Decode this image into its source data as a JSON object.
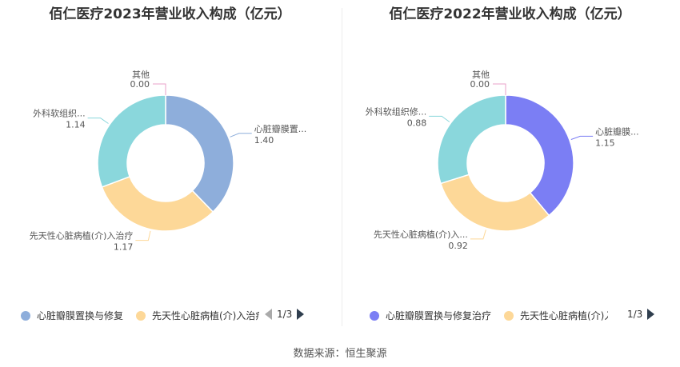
{
  "chart_data": [
    {
      "type": "pie",
      "title": "佰仁医疗2023年营业收入构成（亿元）",
      "unit": "亿元",
      "colors": [
        "#8eaedb",
        "#fdd898",
        "#8ad7dc",
        "#e8a0c8"
      ],
      "slices": [
        {
          "label": "心脏瓣膜置...",
          "value": 1.4,
          "display": "1.40"
        },
        {
          "label": "先天性心脏病植(介)入治疗",
          "value": 1.17,
          "display": "1.17"
        },
        {
          "label": "外科软组织...",
          "value": 1.14,
          "display": "1.14"
        },
        {
          "label": "其他",
          "value": 0.0,
          "display": "0.00"
        }
      ],
      "legend": {
        "items": [
          {
            "label": "心脏瓣膜置换与修复",
            "color": "#8eaedb"
          },
          {
            "label": "先天性心脏病植(介)入治疗",
            "color": "#fdd898"
          }
        ],
        "page": "1/3",
        "position": "bottom"
      }
    },
    {
      "type": "pie",
      "title": "佰仁医疗2022年营业收入构成（亿元）",
      "unit": "亿元",
      "colors": [
        "#7b7ef4",
        "#fdd898",
        "#8ad7dc",
        "#e8a0c8"
      ],
      "slices": [
        {
          "label": "心脏瓣膜...",
          "value": 1.15,
          "display": "1.15"
        },
        {
          "label": "先天性心脏病植(介)入...",
          "value": 0.92,
          "display": "0.92"
        },
        {
          "label": "外科软组织修...",
          "value": 0.88,
          "display": "0.88"
        },
        {
          "label": "其他",
          "value": 0.0,
          "display": "0.00"
        }
      ],
      "legend": {
        "items": [
          {
            "label": "心脏瓣膜置换与修复治疗",
            "color": "#7b7ef4"
          },
          {
            "label": "先天性心脏病植(介)入治疗",
            "color": "#fdd898"
          }
        ],
        "page": "1/3",
        "position": "bottom"
      }
    }
  ],
  "source": "数据来源：恒生聚源"
}
